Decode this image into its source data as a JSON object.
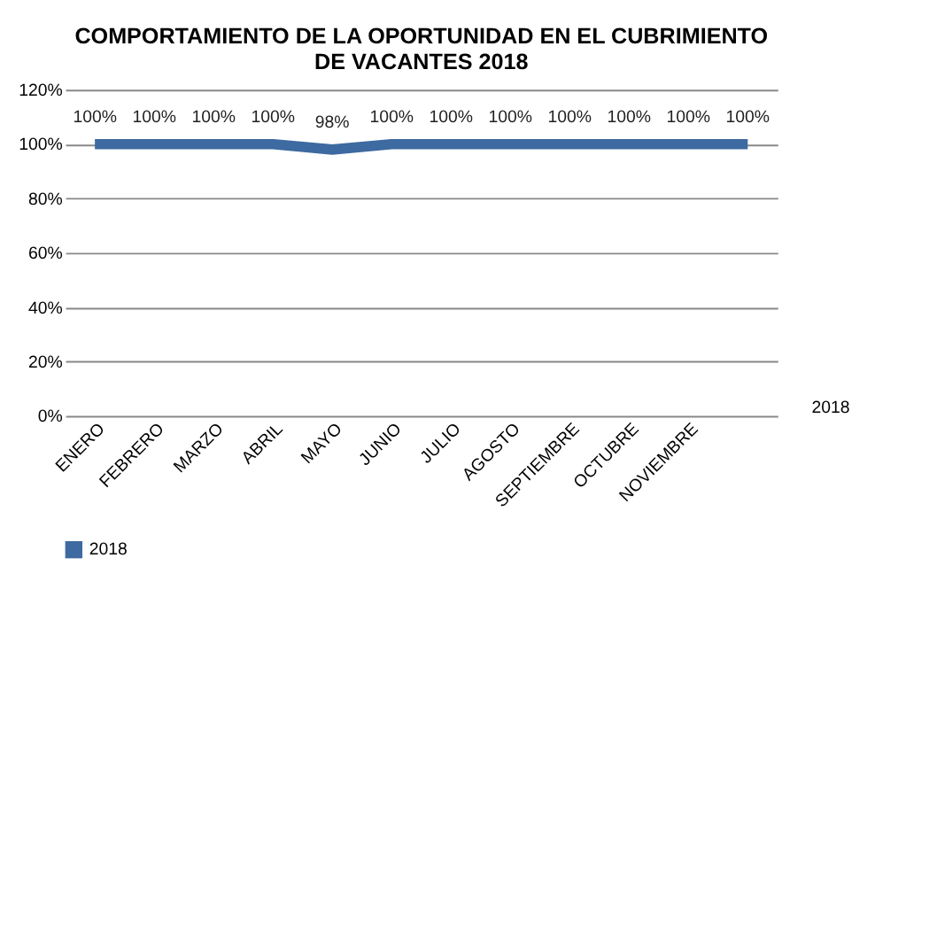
{
  "chart_data": {
    "type": "line",
    "title": "COMPORTAMIENTO DE LA OPORTUNIDAD EN EL CUBRIMIENTO DE VACANTES 2018",
    "categories": [
      "ENERO",
      "FEBRERO",
      "MARZO",
      "ABRIL",
      "MAYO",
      "JUNIO",
      "JULIO",
      "AGOSTO",
      "SEPTIEMBRE",
      "OCTUBRE",
      "NOVIEMBRE",
      null
    ],
    "series": [
      {
        "name": "2018",
        "color": "#3d6aa0",
        "values": [
          100,
          100,
          100,
          100,
          98,
          100,
          100,
          100,
          100,
          100,
          100,
          100
        ]
      }
    ],
    "value_labels": [
      "100%",
      "100%",
      "100%",
      "100%",
      "98%",
      "100%",
      "100%",
      "100%",
      "100%",
      "100%",
      "100%",
      "100%"
    ],
    "ylim": [
      0,
      120
    ],
    "yticks": [
      {
        "value": 0,
        "label": "0%"
      },
      {
        "value": 20,
        "label": "20%"
      },
      {
        "value": 40,
        "label": "40%"
      },
      {
        "value": 60,
        "label": "60%"
      },
      {
        "value": 80,
        "label": "80%"
      },
      {
        "value": 100,
        "label": "100%"
      },
      {
        "value": 120,
        "label": "120%"
      }
    ],
    "annotations": [
      "2018"
    ],
    "grid": "y",
    "legend": "bottom",
    "marker": "none",
    "line_style": "solid"
  }
}
